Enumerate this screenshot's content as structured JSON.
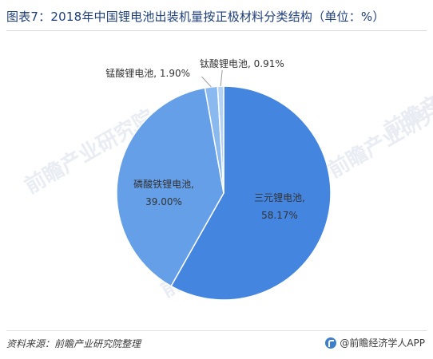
{
  "title": "图表7：2018年中国锂电池出装机量按正极材料分类结构（单位：%）",
  "watermark": "前瞻产业研究院",
  "source": "资料来源：前瞻产业研究院整理",
  "brand": "@前瞻经济学人APP",
  "chart_data": {
    "type": "pie",
    "title": "图表7：2018年中国锂电池出装机量按正极材料分类结构（单位：%）",
    "unit": "%",
    "slices": [
      {
        "label": "三元锂电池",
        "value": 58.17,
        "display": "58.17%",
        "color": "#4485e0"
      },
      {
        "label": "磷酸铁锂电池",
        "value": 39.0,
        "display": "39.00%",
        "color": "#649fe8"
      },
      {
        "label": "锰酸锂电池",
        "value": 1.9,
        "display": "1.90%",
        "color": "#8ab9f0"
      },
      {
        "label": "钛酸锂电池",
        "value": 0.91,
        "display": "0.91%",
        "color": "#b4d2f6"
      }
    ]
  }
}
